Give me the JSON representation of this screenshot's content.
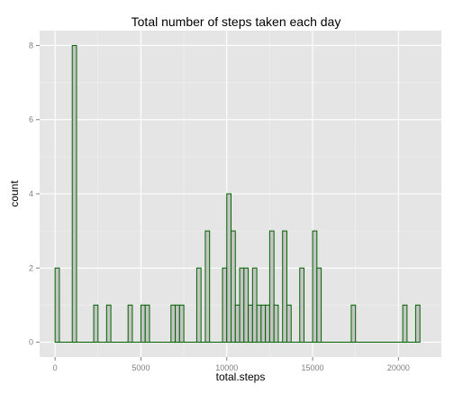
{
  "chart_data": {
    "type": "bar",
    "title": "Total number of steps taken each day",
    "xlabel": "total.steps",
    "ylabel": "count",
    "xlim": [
      -900,
      22500
    ],
    "ylim": [
      -0.4,
      8.4
    ],
    "bin_width": 250,
    "x_ticks": [
      0,
      5000,
      10000,
      15000,
      20000
    ],
    "x_tick_labels": [
      "0",
      "5000",
      "10000",
      "15000",
      "20000"
    ],
    "y_ticks": [
      0,
      2,
      4,
      6,
      8
    ],
    "y_tick_labels": [
      "0",
      "2",
      "4",
      "6",
      "8"
    ],
    "grid": true,
    "colors": {
      "panel_bg": "#E5E5E5",
      "grid_major": "#FFFFFF",
      "grid_minor": "#F2F2F2",
      "bar_fill": "#C4C4C4",
      "bar_outline": "#006400",
      "tick_label": "#7F7F7F"
    },
    "bins_x_start": [
      0,
      1000,
      2250,
      3000,
      4250,
      5000,
      5250,
      6750,
      7000,
      7250,
      8250,
      8750,
      9750,
      10000,
      10250,
      10500,
      10750,
      11000,
      11250,
      11500,
      11750,
      12000,
      12250,
      12500,
      12750,
      13250,
      13500,
      14250,
      15000,
      15250,
      17250,
      20250,
      21000
    ],
    "counts": [
      2,
      8,
      1,
      1,
      1,
      1,
      1,
      1,
      1,
      1,
      2,
      3,
      2,
      4,
      3,
      1,
      2,
      2,
      1,
      2,
      1,
      1,
      1,
      3,
      1,
      3,
      1,
      2,
      3,
      2,
      1,
      1,
      1
    ]
  }
}
